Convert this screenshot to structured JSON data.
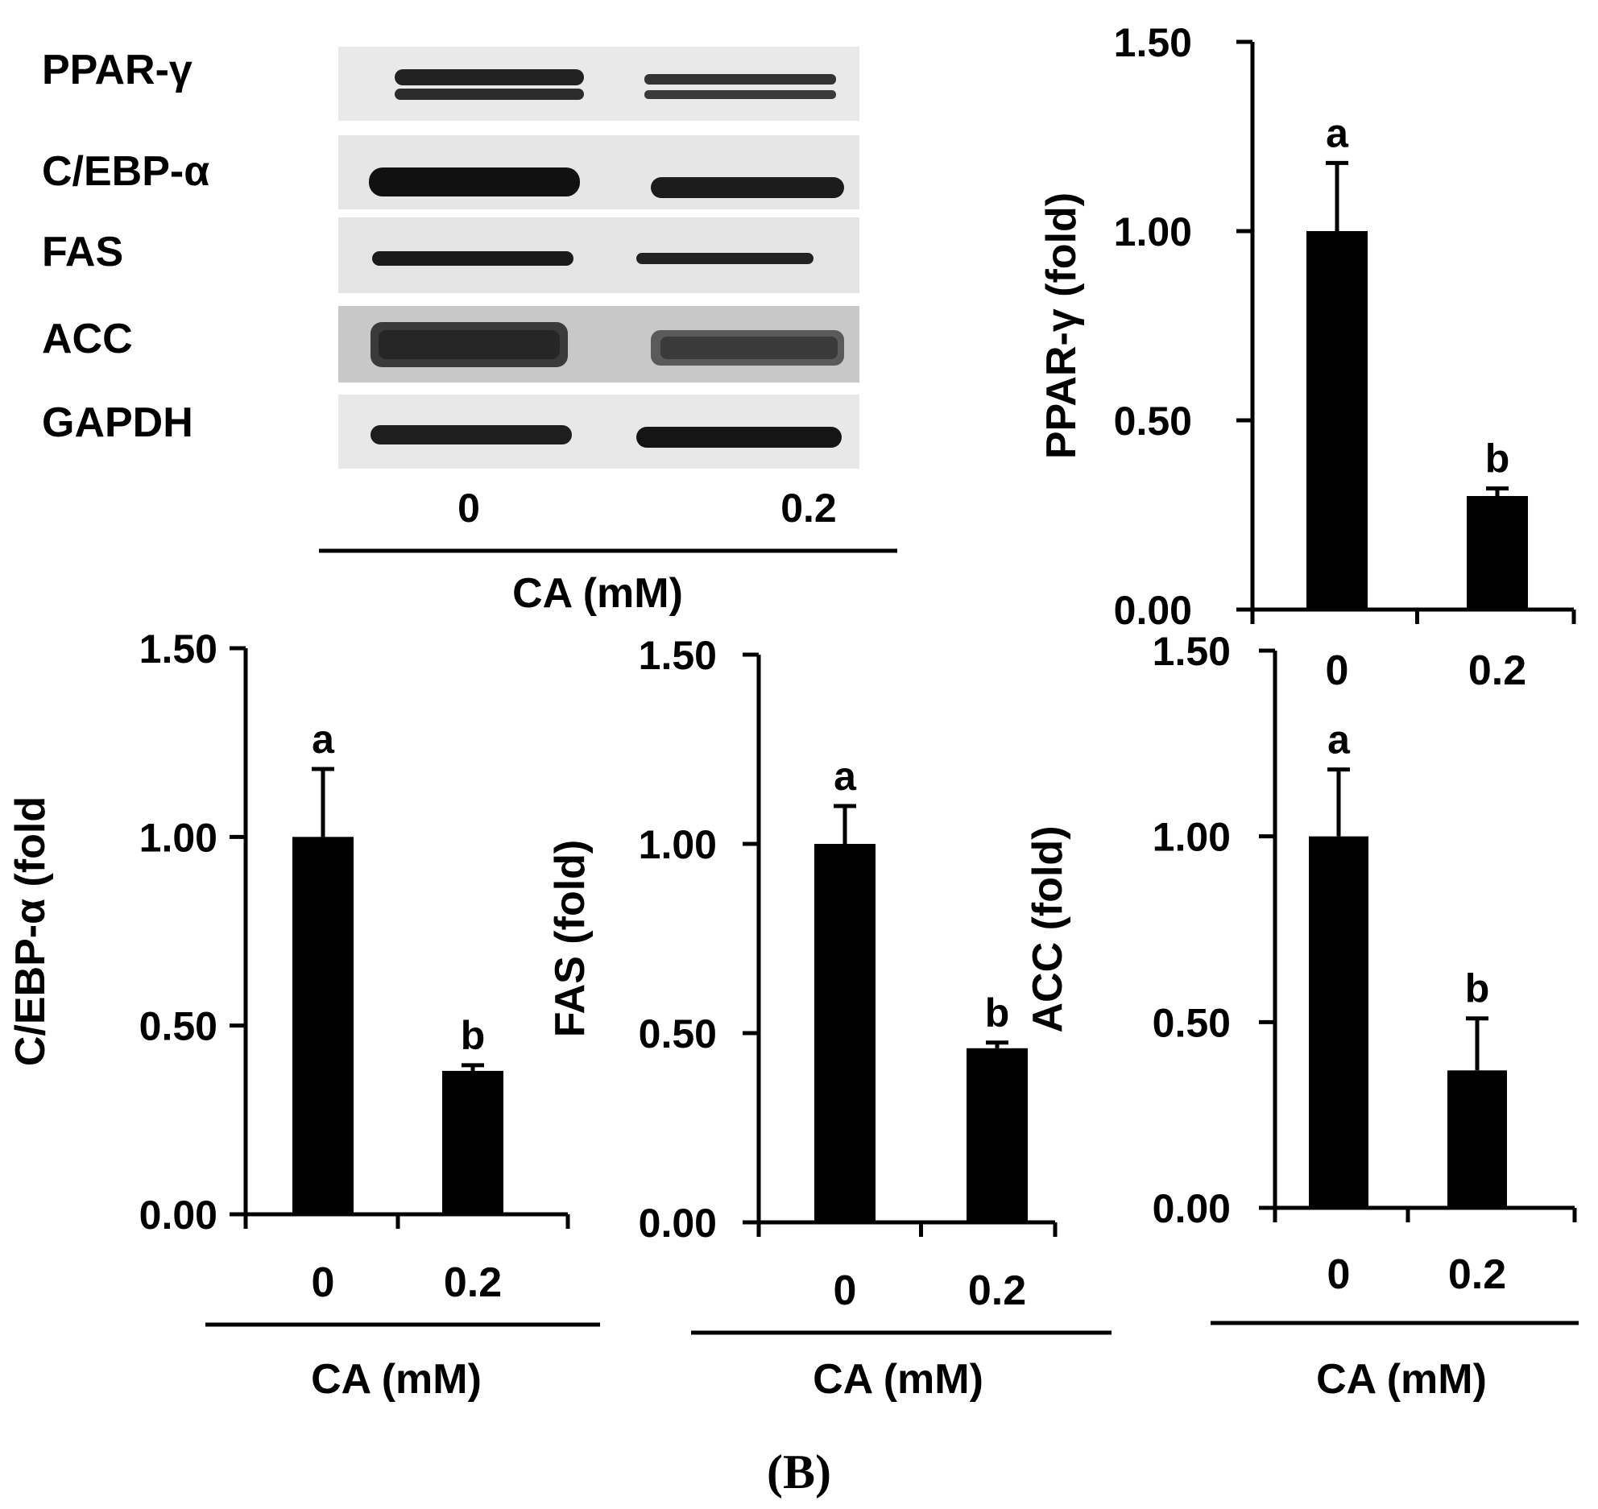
{
  "figure_label": "(B)",
  "western_blot": {
    "rows": [
      {
        "label": "PPAR-γ",
        "style": "double"
      },
      {
        "label": "C/EBP-α",
        "style": "thick"
      },
      {
        "label": "FAS",
        "style": "thin"
      },
      {
        "label": "ACC",
        "style": "speckled"
      },
      {
        "label": "GAPDH",
        "style": "thin"
      }
    ],
    "lanes": [
      "0",
      "0.2"
    ],
    "xlabel": "CA (mM)"
  },
  "chart_data": [
    {
      "type": "bar",
      "categories": [
        "0",
        "0.2"
      ],
      "values": [
        1.0,
        0.3
      ],
      "errors": [
        0.18,
        0.02
      ],
      "significance": [
        "a",
        "b"
      ],
      "ylabel": "PPAR-γ (fold)",
      "xlabel": "",
      "ylim": [
        0,
        1.5
      ],
      "yticks": [
        "0.00",
        "0.50",
        "1.00",
        "1.50"
      ],
      "grid": false
    },
    {
      "type": "bar",
      "categories": [
        "0",
        "0.2"
      ],
      "values": [
        1.0,
        0.38
      ],
      "errors": [
        0.18,
        0.015
      ],
      "significance": [
        "a",
        "b"
      ],
      "ylabel": "C/EBP-α (fold",
      "xlabel": "CA (mM)",
      "ylim": [
        0,
        1.5
      ],
      "yticks": [
        "0.00",
        "0.50",
        "1.00",
        "1.50"
      ],
      "grid": false
    },
    {
      "type": "bar",
      "categories": [
        "0",
        "0.2"
      ],
      "values": [
        1.0,
        0.46
      ],
      "errors": [
        0.1,
        0.015
      ],
      "significance": [
        "a",
        "b"
      ],
      "ylabel": "FAS (fold)",
      "xlabel": "CA (mM)",
      "ylim": [
        0,
        1.5
      ],
      "yticks": [
        "0.00",
        "0.50",
        "1.00",
        "1.50"
      ],
      "grid": false
    },
    {
      "type": "bar",
      "categories": [
        "0",
        "0.2"
      ],
      "values": [
        1.0,
        0.37
      ],
      "errors": [
        0.18,
        0.14
      ],
      "significance": [
        "a",
        "b"
      ],
      "ylabel": "ACC (fold)",
      "xlabel": "CA (mM)",
      "ylim": [
        0,
        1.5
      ],
      "yticks": [
        "0.00",
        "0.50",
        "1.00",
        "1.50"
      ],
      "grid": false
    }
  ]
}
